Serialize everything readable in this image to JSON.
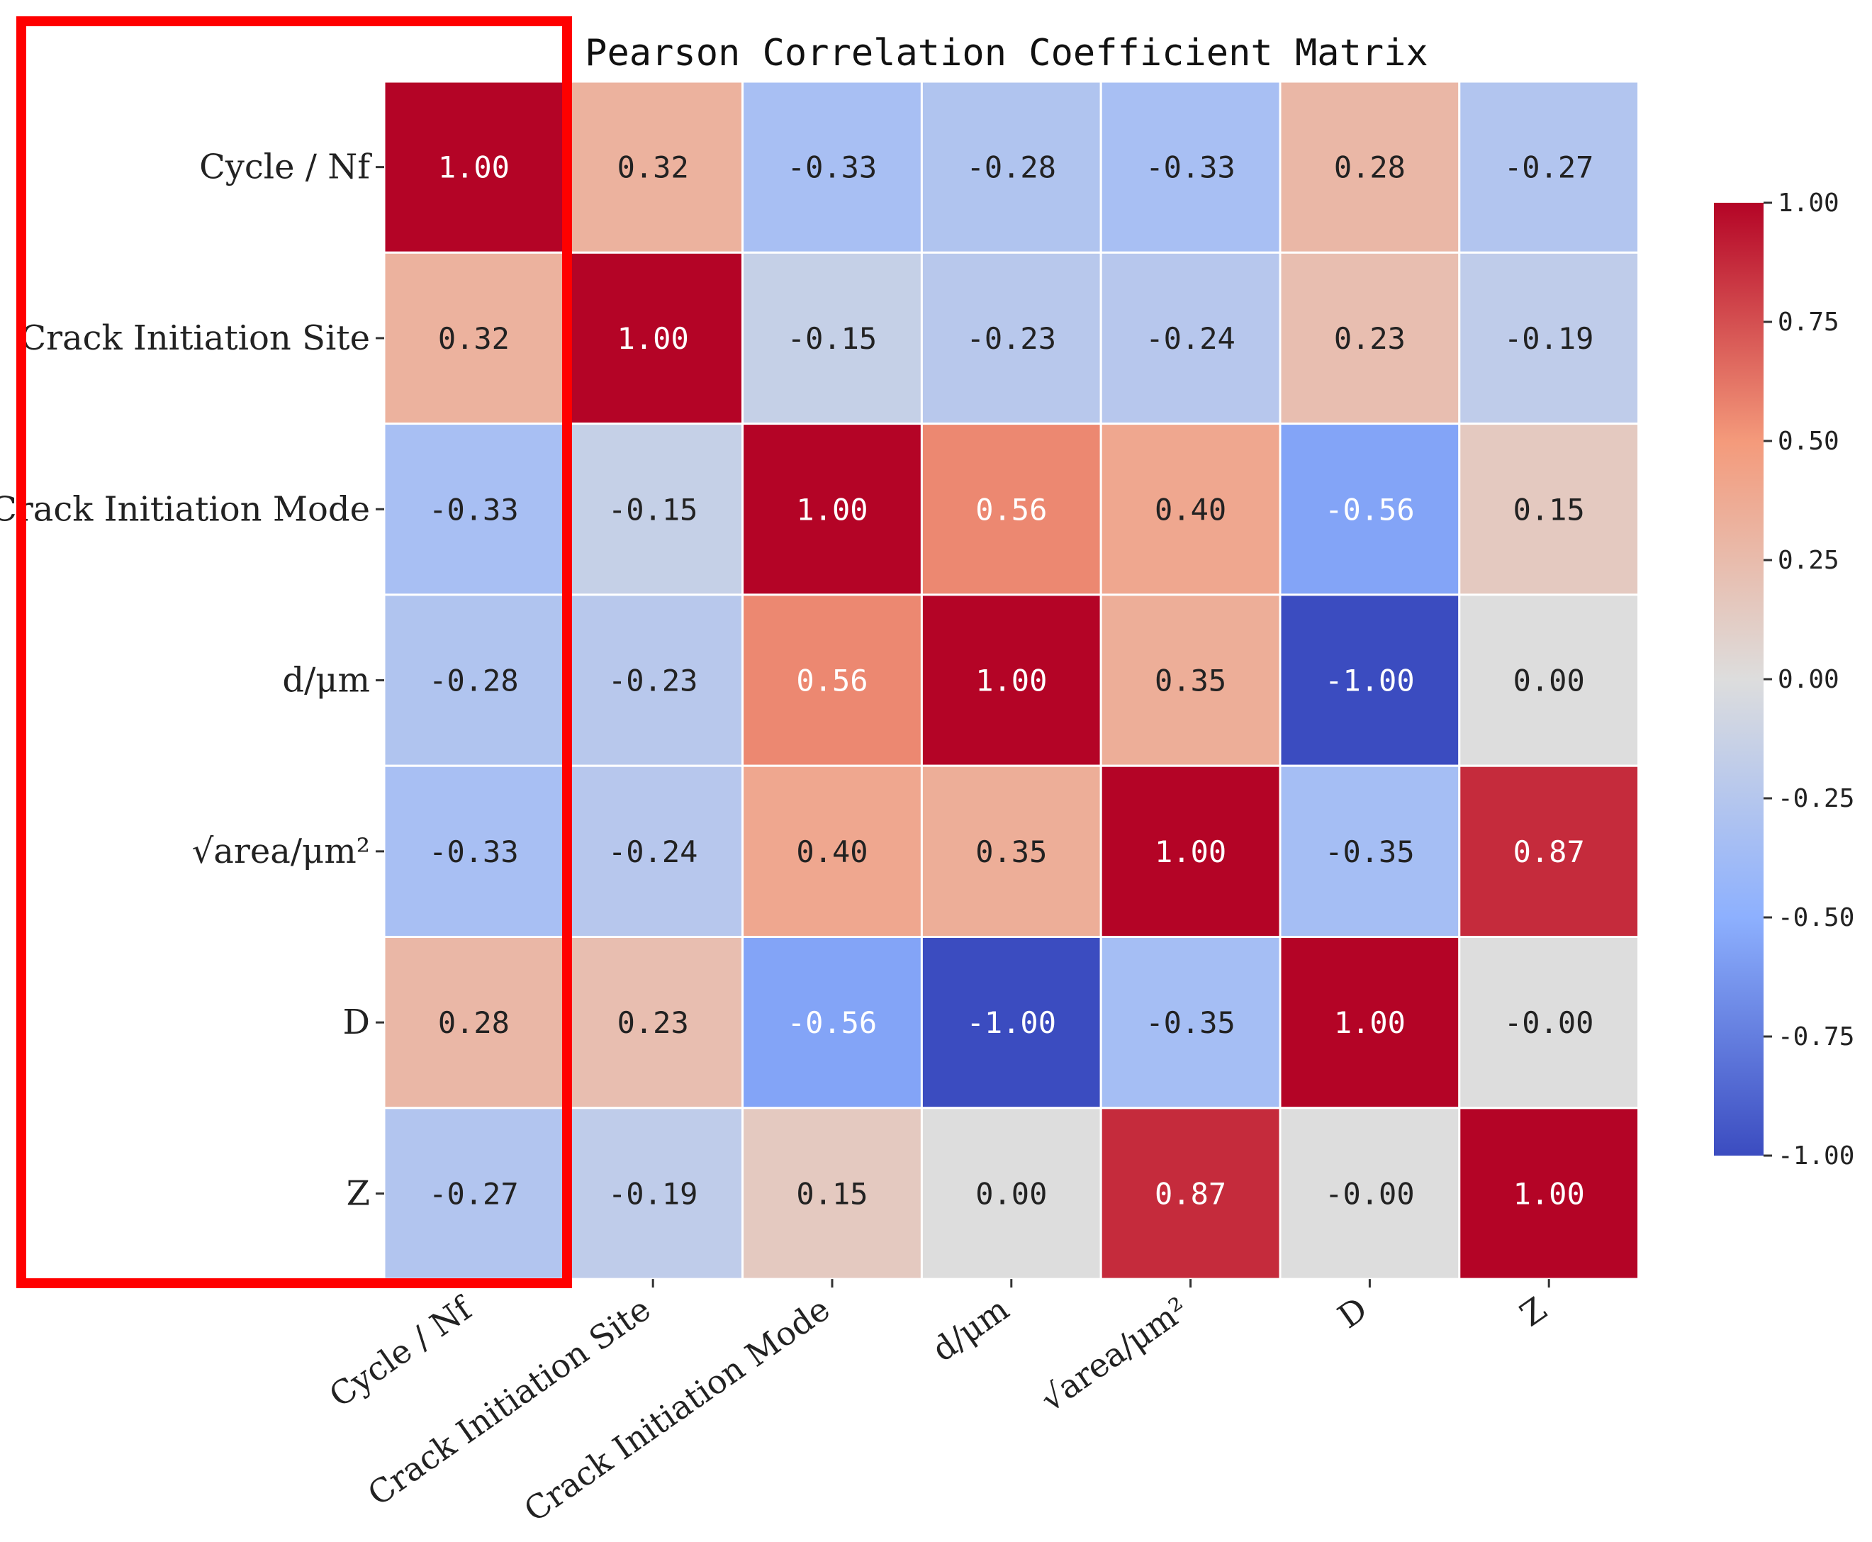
{
  "chart_data": {
    "type": "heatmap",
    "title": "Pearson Correlation Coefficient Matrix",
    "row_labels": [
      "Cycle / Nf",
      "Crack Initiation Site",
      "Crack Initiation Mode",
      "d/μm",
      "√area/μm²",
      "D",
      "Z"
    ],
    "col_labels": [
      "Cycle / Nf",
      "Crack Initiation Site",
      "Crack Initiation Mode",
      "d/μm",
      "√area/μm²",
      "D",
      "Z"
    ],
    "values": [
      [
        1.0,
        0.32,
        -0.33,
        -0.28,
        -0.33,
        0.28,
        -0.27
      ],
      [
        0.32,
        1.0,
        -0.15,
        -0.23,
        -0.24,
        0.23,
        -0.19
      ],
      [
        -0.33,
        -0.15,
        1.0,
        0.56,
        0.4,
        -0.56,
        0.15
      ],
      [
        -0.28,
        -0.23,
        0.56,
        1.0,
        0.35,
        -1.0,
        0.0
      ],
      [
        -0.33,
        -0.24,
        0.4,
        0.35,
        1.0,
        -0.35,
        0.87
      ],
      [
        0.28,
        0.23,
        -0.56,
        -1.0,
        -0.35,
        1.0,
        -0.0
      ],
      [
        -0.27,
        -0.19,
        0.15,
        0.0,
        0.87,
        -0.0,
        1.0
      ]
    ],
    "labels": [
      [
        "1.00",
        "0.32",
        "-0.33",
        "-0.28",
        "-0.33",
        "0.28",
        "-0.27"
      ],
      [
        "0.32",
        "1.00",
        "-0.15",
        "-0.23",
        "-0.24",
        "0.23",
        "-0.19"
      ],
      [
        "-0.33",
        "-0.15",
        "1.00",
        "0.56",
        "0.40",
        "-0.56",
        "0.15"
      ],
      [
        "-0.28",
        "-0.23",
        "0.56",
        "1.00",
        "0.35",
        "-1.00",
        "0.00"
      ],
      [
        "-0.33",
        "-0.24",
        "0.40",
        "0.35",
        "1.00",
        "-0.35",
        "0.87"
      ],
      [
        "0.28",
        "0.23",
        "-0.56",
        "-1.00",
        "-0.35",
        "1.00",
        "-0.00"
      ],
      [
        "-0.27",
        "-0.19",
        "0.15",
        "0.00",
        "0.87",
        "-0.00",
        "1.00"
      ]
    ],
    "vmin": -1.0,
    "vmax": 1.0,
    "colormap": "coolwarm",
    "colorbar_ticks": [
      "1.00",
      "0.75",
      "0.50",
      "0.25",
      "0.00",
      "-0.25",
      "-0.50",
      "-0.75",
      "-1.00"
    ],
    "colorbar_tick_values": [
      1.0,
      0.75,
      0.5,
      0.25,
      0.0,
      -0.25,
      -0.5,
      -0.75,
      -1.0
    ],
    "highlight": {
      "target": "first-column",
      "color": "#ff0000"
    }
  }
}
